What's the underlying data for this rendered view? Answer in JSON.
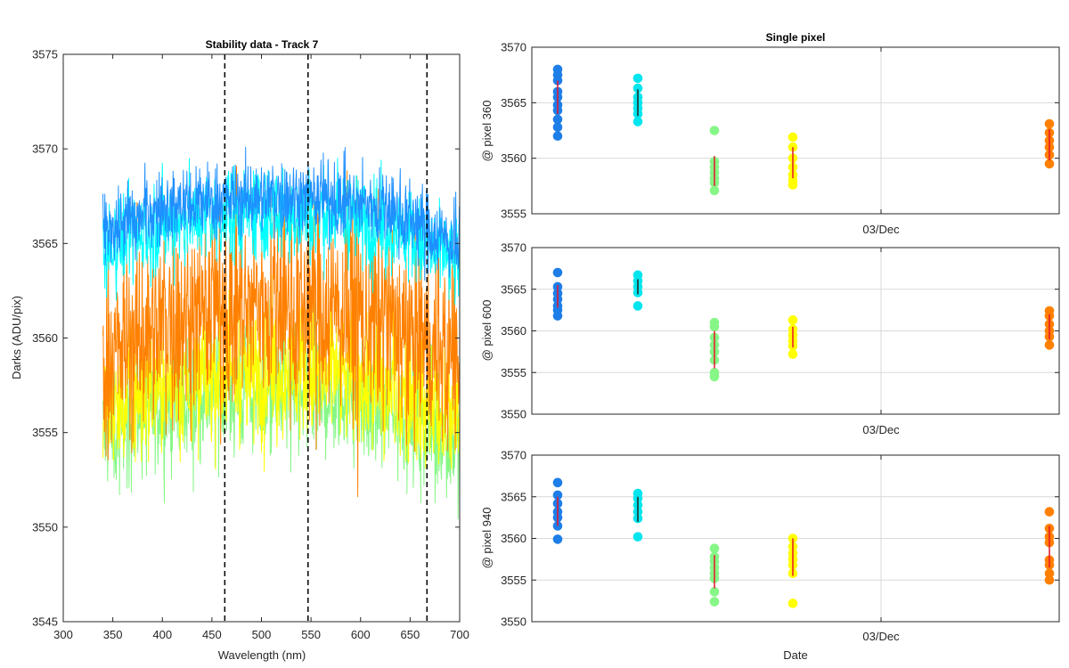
{
  "chart_data": [
    {
      "type": "line",
      "title": "Stability data - Track 7",
      "xlabel": "Wavelength (nm)",
      "ylabel": "Darks (ADU/pix)",
      "xlim": [
        300,
        700
      ],
      "ylim": [
        3545,
        3575
      ],
      "x_ticks": [
        300,
        350,
        400,
        450,
        500,
        550,
        600,
        650,
        700
      ],
      "y_ticks": [
        3545,
        3550,
        3555,
        3560,
        3565,
        3570,
        3575
      ],
      "x_range": [
        340,
        700
      ],
      "grid": false,
      "vertical_lines": [
        463,
        547,
        667
      ],
      "series": [
        {
          "color": "#86f786",
          "values": [
            3555.0,
            3556.5,
            3557.0,
            3557.2,
            3557.0,
            3556.2,
            3554.5
          ],
          "spread": 3.0
        },
        {
          "color": "#ffff00",
          "values": [
            3556.0,
            3557.5,
            3558.0,
            3558.2,
            3558.0,
            3557.0,
            3555.5
          ],
          "spread": 3.2
        },
        {
          "color": "#ff8000",
          "values": [
            3558.8,
            3560.8,
            3561.5,
            3561.7,
            3561.5,
            3560.5,
            3558.8
          ],
          "spread": 4.8
        },
        {
          "color": "#00ffff",
          "values": [
            3564.8,
            3566.0,
            3566.5,
            3566.6,
            3566.4,
            3565.6,
            3563.8
          ],
          "spread": 2.2
        },
        {
          "color": "#1e90ff",
          "values": [
            3565.6,
            3566.8,
            3567.3,
            3567.5,
            3567.3,
            3566.6,
            3564.8
          ],
          "spread": 1.8
        }
      ]
    },
    {
      "type": "scatter",
      "title": "Single pixel",
      "xlabel": "",
      "ylabel": "@ pixel 360",
      "ylim": [
        3555,
        3570
      ],
      "y_ticks": [
        3555,
        3560,
        3565,
        3570
      ],
      "x_tick_label": "03/Dec",
      "grid": true,
      "groups": [
        {
          "color": "#1e7ee8",
          "values": [
            3568.0,
            3567.5,
            3567.0,
            3566.0,
            3565.5,
            3564.8,
            3564.3,
            3563.5,
            3562.8,
            3562.0
          ],
          "errorbar": [
            3564.0,
            3567.0
          ],
          "bar_color": "#e8132a"
        },
        {
          "color": "#00e5ee",
          "values": [
            3567.2,
            3566.3,
            3565.5,
            3565.0,
            3564.5,
            3564.0,
            3563.3
          ],
          "errorbar": [
            3563.8,
            3566.2
          ],
          "bar_color": "#222222"
        },
        {
          "color": "#86f786",
          "values": [
            3562.5,
            3559.7,
            3559.2,
            3558.7,
            3558.2,
            3557.8,
            3557.1
          ],
          "errorbar": [
            3557.5,
            3560.2
          ],
          "bar_color": "#e8132a"
        },
        {
          "color": "#ffff00",
          "values": [
            3561.9,
            3561.0,
            3560.0,
            3559.2,
            3558.5,
            3558.0,
            3557.6
          ],
          "errorbar": [
            3558.2,
            3561.0
          ],
          "bar_color": "#e8132a"
        },
        {
          "color": "#ff8000",
          "values": [
            3563.1,
            3562.3,
            3561.6,
            3561.0,
            3560.3,
            3559.5
          ],
          "errorbar": [
            3559.8,
            3562.6
          ],
          "bar_color": "#e8132a"
        }
      ]
    },
    {
      "type": "scatter",
      "title": "",
      "xlabel": "",
      "ylabel": "@ pixel 600",
      "ylim": [
        3550,
        3570
      ],
      "y_ticks": [
        3550,
        3555,
        3560,
        3565,
        3570
      ],
      "x_tick_label": "03/Dec",
      "grid": true,
      "groups": [
        {
          "color": "#1e7ee8",
          "values": [
            3567.0,
            3565.3,
            3564.5,
            3563.8,
            3563.0,
            3562.5,
            3561.8
          ],
          "errorbar": [
            3562.8,
            3565.5
          ],
          "bar_color": "#e8132a"
        },
        {
          "color": "#00e5ee",
          "values": [
            3566.7,
            3566.0,
            3565.3,
            3564.6,
            3563.0
          ],
          "errorbar": [
            3564.4,
            3566.2
          ],
          "bar_color": "#222222"
        },
        {
          "color": "#86f786",
          "values": [
            3561.0,
            3560.5,
            3559.2,
            3558.3,
            3557.5,
            3556.5,
            3555.0,
            3554.5
          ],
          "errorbar": [
            3555.5,
            3560.0
          ],
          "bar_color": "#e8132a"
        },
        {
          "color": "#ffff00",
          "values": [
            3561.3,
            3560.2,
            3559.5,
            3558.8,
            3558.2,
            3557.2
          ],
          "errorbar": [
            3558.0,
            3560.5
          ],
          "bar_color": "#e8132a"
        },
        {
          "color": "#ff8000",
          "values": [
            3562.4,
            3561.8,
            3560.8,
            3560.0,
            3559.3,
            3558.3
          ],
          "errorbar": [
            3559.0,
            3562.0
          ],
          "bar_color": "#e8132a"
        }
      ]
    },
    {
      "type": "scatter",
      "title": "",
      "xlabel": "Date",
      "ylabel": "@ pixel 940",
      "ylim": [
        3550,
        3570
      ],
      "y_ticks": [
        3550,
        3555,
        3560,
        3565,
        3570
      ],
      "x_tick_label": "03/Dec",
      "grid": true,
      "groups": [
        {
          "color": "#1e7ee8",
          "values": [
            3566.7,
            3565.2,
            3564.2,
            3563.2,
            3562.5,
            3561.5,
            3559.9
          ],
          "errorbar": [
            3561.5,
            3565.0
          ],
          "bar_color": "#e8132a"
        },
        {
          "color": "#00e5ee",
          "values": [
            3565.4,
            3564.8,
            3564.0,
            3563.2,
            3562.4,
            3560.2
          ],
          "errorbar": [
            3562.0,
            3565.0
          ],
          "bar_color": "#222222"
        },
        {
          "color": "#86f786",
          "values": [
            3558.8,
            3557.8,
            3557.2,
            3556.5,
            3555.8,
            3555.2,
            3553.6,
            3552.4
          ],
          "errorbar": [
            3554.0,
            3558.0
          ],
          "bar_color": "#e8132a"
        },
        {
          "color": "#ffff00",
          "values": [
            3560.0,
            3559.0,
            3558.2,
            3557.5,
            3556.8,
            3555.8,
            3552.2
          ],
          "errorbar": [
            3555.5,
            3560.0
          ],
          "bar_color": "#e8132a"
        },
        {
          "color": "#ff8000",
          "values": [
            3563.2,
            3561.2,
            3560.2,
            3559.5,
            3557.4,
            3556.8,
            3555.8,
            3555.0
          ],
          "errorbar": [
            3556.5,
            3561.5
          ],
          "bar_color": "#e8132a"
        }
      ]
    }
  ]
}
